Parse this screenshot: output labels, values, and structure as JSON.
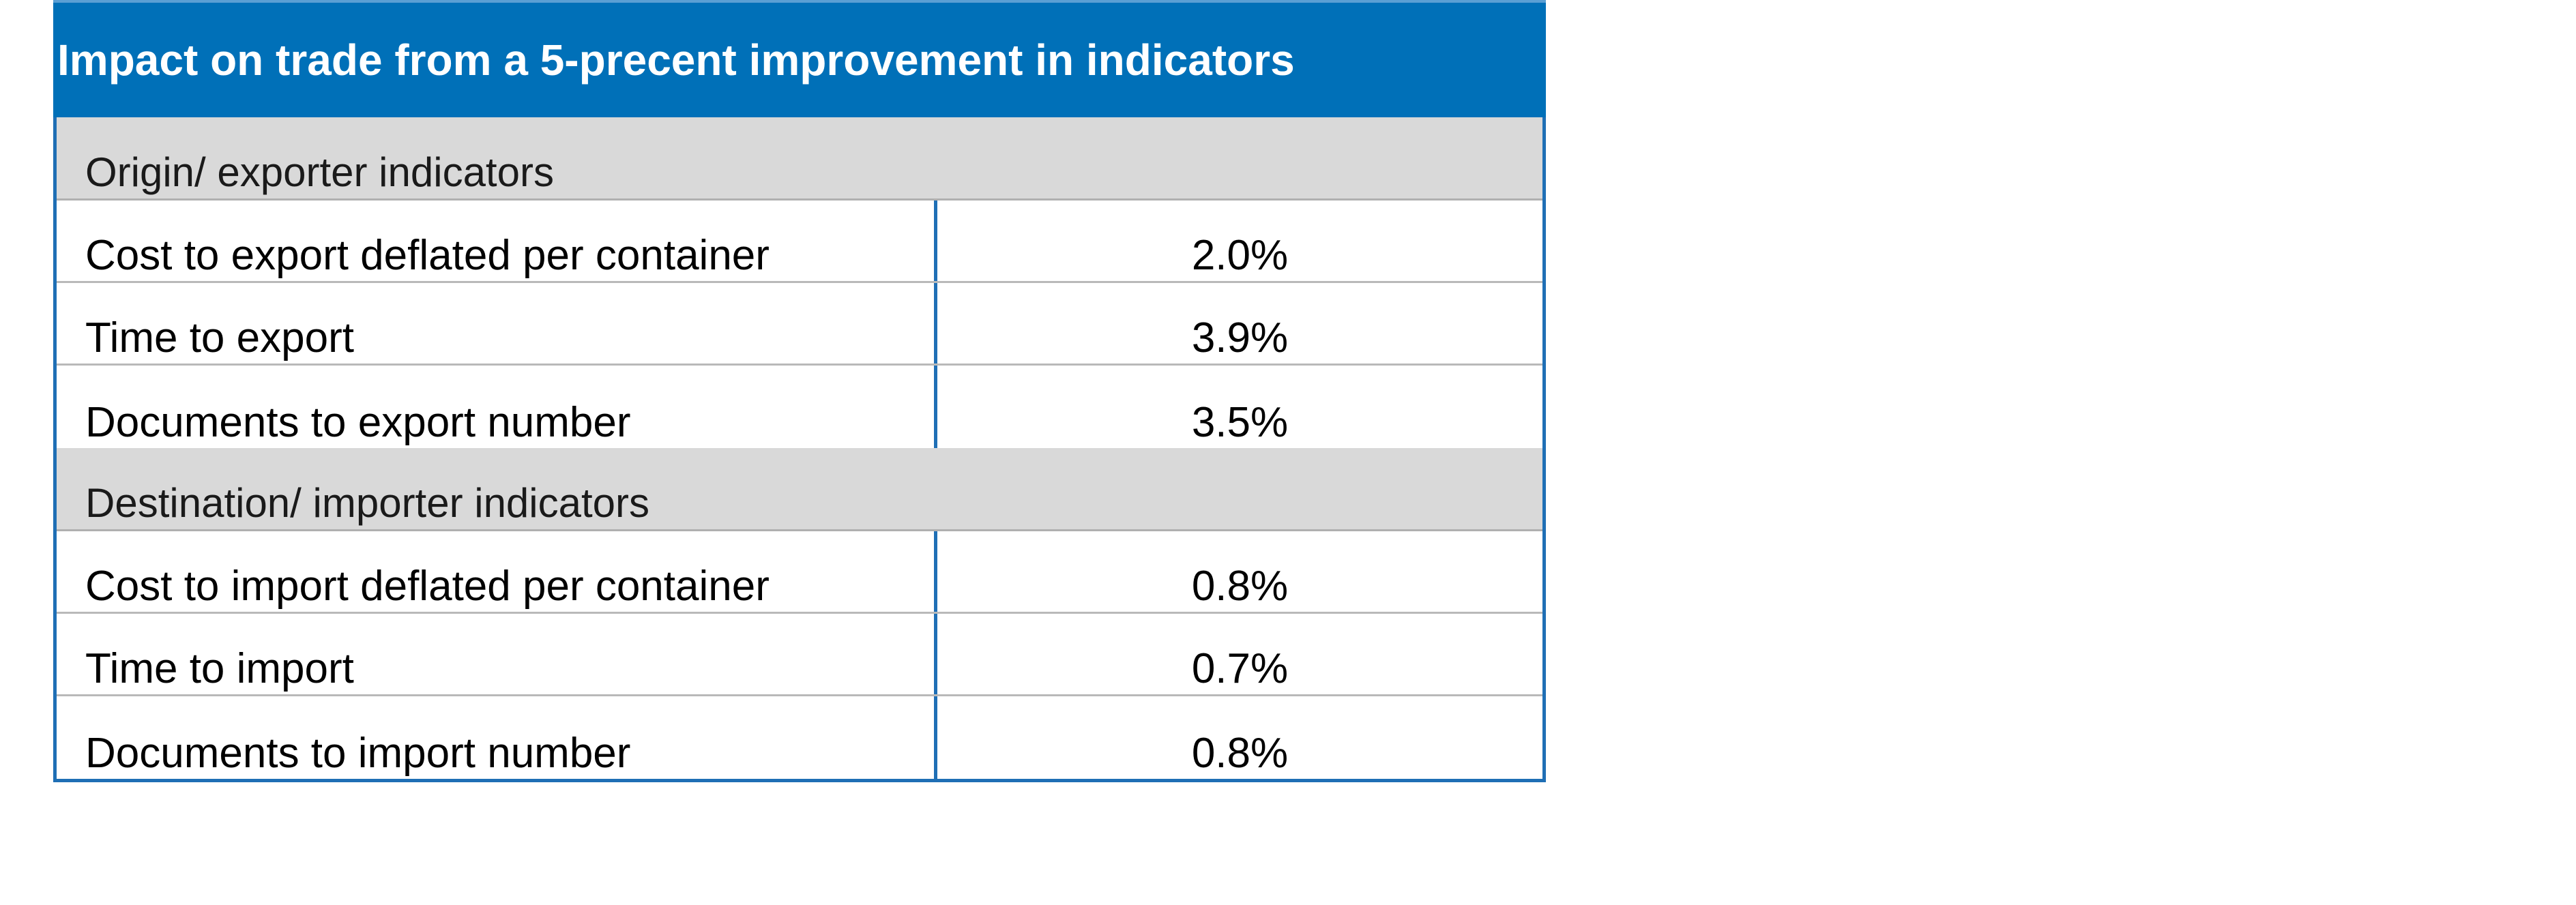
{
  "table": {
    "title": "Impact on trade from a 5-precent improvement  in indicators",
    "sections": [
      {
        "heading": "Origin/ exporter indicators",
        "rows": [
          {
            "label": "Cost to export deflated per container",
            "value": "2.0%"
          },
          {
            "label": "Time to export",
            "value": "3.9%"
          },
          {
            "label": "Documents to export number",
            "value": "3.5%"
          }
        ]
      },
      {
        "heading": "Destination/ importer indicators",
        "rows": [
          {
            "label": "Cost to import deflated per container",
            "value": "0.8%"
          },
          {
            "label": "Time to import",
            "value": "0.7%"
          },
          {
            "label": "Documents to import number",
            "value": "0.8%"
          }
        ]
      }
    ]
  },
  "colors": {
    "header_bg": "#0070B8",
    "section_bg": "#D9D9D9",
    "border": "#1F6FB5"
  }
}
